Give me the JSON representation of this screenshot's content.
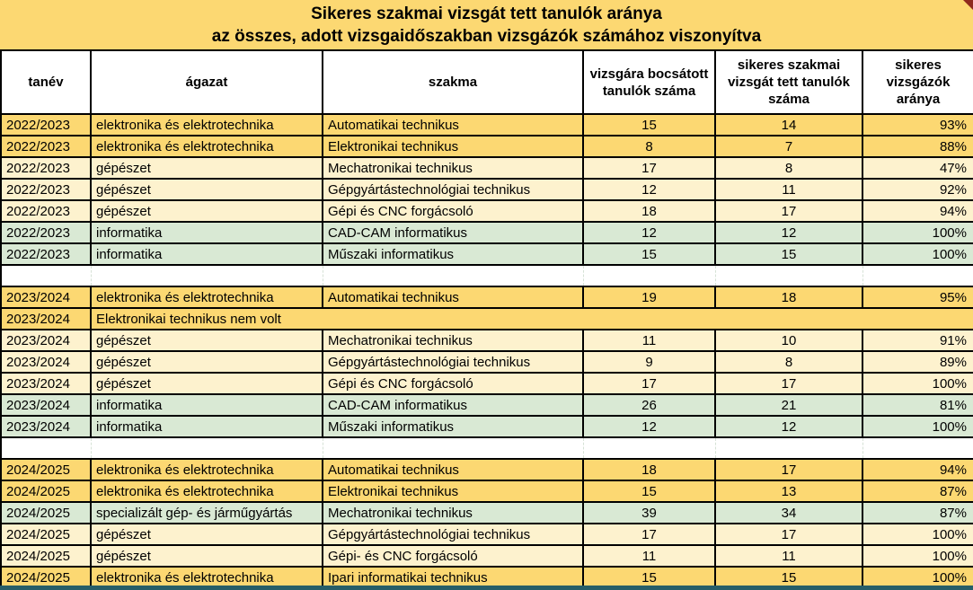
{
  "title": {
    "line1": "Sikeres szakmai vizsgát tett tanulók aránya",
    "line2": "az összes, adott vizsgaidőszakban vizsgázók számához viszonyítva"
  },
  "columns": [
    "tanév",
    "ágazat",
    "szakma",
    "vizsgára bocsátott tanulók száma",
    "sikeres szakmai vizsgát tett tanulók száma",
    "sikeres vizsgázók aránya"
  ],
  "colors": {
    "gold": "#FCD872",
    "cream": "#FDF2CE",
    "green": "#D9E9D4",
    "header_bg": "#FFFFFF",
    "border": "#000000",
    "bottom_strip": "#265E68",
    "comment_marker": "#8F2A1E"
  },
  "rows": [
    {
      "type": "data",
      "bg": "gold",
      "tanev": "2022/2023",
      "agazat": "elektronika és elektrotechnika",
      "szakma": "Automatikai technikus",
      "vizsgara_bocsatott": "15",
      "sikeres_vizsgat_tett": "14",
      "arany": "93%"
    },
    {
      "type": "data",
      "bg": "gold",
      "tanev": "2022/2023",
      "agazat": "elektronika és elektrotechnika",
      "szakma": "Elektronikai technikus",
      "vizsgara_bocsatott": "8",
      "sikeres_vizsgat_tett": "7",
      "arany": "88%"
    },
    {
      "type": "data",
      "bg": "cream",
      "tanev": "2022/2023",
      "agazat": "gépészet",
      "szakma": "Mechatronikai technikus",
      "vizsgara_bocsatott": "17",
      "sikeres_vizsgat_tett": "8",
      "arany": "47%"
    },
    {
      "type": "data",
      "bg": "cream",
      "tanev": "2022/2023",
      "agazat": "gépészet",
      "szakma": "Gépgyártástechnológiai technikus",
      "vizsgara_bocsatott": "12",
      "sikeres_vizsgat_tett": "11",
      "arany": "92%"
    },
    {
      "type": "data",
      "bg": "cream",
      "tanev": "2022/2023",
      "agazat": "gépészet",
      "szakma": "Gépi és CNC forgácsoló",
      "vizsgara_bocsatott": "18",
      "sikeres_vizsgat_tett": "17",
      "arany": "94%"
    },
    {
      "type": "data",
      "bg": "green",
      "tanev": "2022/2023",
      "agazat": "informatika",
      "szakma": "CAD-CAM informatikus",
      "vizsgara_bocsatott": "12",
      "sikeres_vizsgat_tett": "12",
      "arany": "100%"
    },
    {
      "type": "data",
      "bg": "green",
      "tanev": "2022/2023",
      "agazat": "informatika",
      "szakma": "Műszaki informatikus",
      "vizsgara_bocsatott": "15",
      "sikeres_vizsgat_tett": "15",
      "arany": "100%"
    },
    {
      "type": "gap"
    },
    {
      "type": "data",
      "bg": "gold",
      "tanev": "2023/2024",
      "agazat": "elektronika és elektrotechnika",
      "szakma": "Automatikai technikus",
      "vizsgara_bocsatott": "19",
      "sikeres_vizsgat_tett": "18",
      "arany": "95%"
    },
    {
      "type": "note",
      "bg": "gold",
      "tanev": "2023/2024",
      "note": "Elektronikai technikus nem volt"
    },
    {
      "type": "data",
      "bg": "cream",
      "tanev": "2023/2024",
      "agazat": "gépészet",
      "szakma": "Mechatronikai technikus",
      "vizsgara_bocsatott": "11",
      "sikeres_vizsgat_tett": "10",
      "arany": "91%"
    },
    {
      "type": "data",
      "bg": "cream",
      "tanev": "2023/2024",
      "agazat": "gépészet",
      "szakma": "Gépgyártástechnológiai technikus",
      "vizsgara_bocsatott": "9",
      "sikeres_vizsgat_tett": "8",
      "arany": "89%"
    },
    {
      "type": "data",
      "bg": "cream",
      "tanev": "2023/2024",
      "agazat": "gépészet",
      "szakma": "Gépi és CNC forgácsoló",
      "vizsgara_bocsatott": "17",
      "sikeres_vizsgat_tett": "17",
      "arany": "100%"
    },
    {
      "type": "data",
      "bg": "green",
      "tanev": "2023/2024",
      "agazat": "informatika",
      "szakma": "CAD-CAM informatikus",
      "vizsgara_bocsatott": "26",
      "sikeres_vizsgat_tett": "21",
      "arany": "81%"
    },
    {
      "type": "data",
      "bg": "green",
      "tanev": "2023/2024",
      "agazat": "informatika",
      "szakma": "Műszaki informatikus",
      "vizsgara_bocsatott": "12",
      "sikeres_vizsgat_tett": "12",
      "arany": "100%"
    },
    {
      "type": "gap"
    },
    {
      "type": "data",
      "bg": "gold",
      "tanev": "2024/2025",
      "agazat": "elektronika és elektrotechnika",
      "szakma": "Automatikai technikus",
      "vizsgara_bocsatott": "18",
      "sikeres_vizsgat_tett": "17",
      "arany": "94%"
    },
    {
      "type": "data",
      "bg": "gold",
      "tanev": "2024/2025",
      "agazat": "elektronika és elektrotechnika",
      "szakma": "Elektronikai technikus",
      "vizsgara_bocsatott": "15",
      "sikeres_vizsgat_tett": "13",
      "arany": "87%"
    },
    {
      "type": "data",
      "bg": "green",
      "tanev": "2024/2025",
      "agazat": "specializált gép- és járműgyártás",
      "szakma": "Mechatronikai technikus",
      "vizsgara_bocsatott": "39",
      "sikeres_vizsgat_tett": "34",
      "arany": "87%"
    },
    {
      "type": "data",
      "bg": "cream",
      "tanev": "2024/2025",
      "agazat": "gépészet",
      "szakma": "Gépgyártástechnológiai technikus",
      "vizsgara_bocsatott": "17",
      "sikeres_vizsgat_tett": "17",
      "arany": "100%"
    },
    {
      "type": "data",
      "bg": "cream",
      "tanev": "2024/2025",
      "agazat": "gépészet",
      "szakma": "Gépi- és CNC forgácsoló",
      "vizsgara_bocsatott": "11",
      "sikeres_vizsgat_tett": "11",
      "arany": "100%"
    },
    {
      "type": "data",
      "bg": "gold",
      "tanev": "2024/2025",
      "agazat": "elektronika és elektrotechnika",
      "szakma": "Ipari informatikai technikus",
      "vizsgara_bocsatott": "15",
      "sikeres_vizsgat_tett": "15",
      "arany": "100%"
    }
  ]
}
